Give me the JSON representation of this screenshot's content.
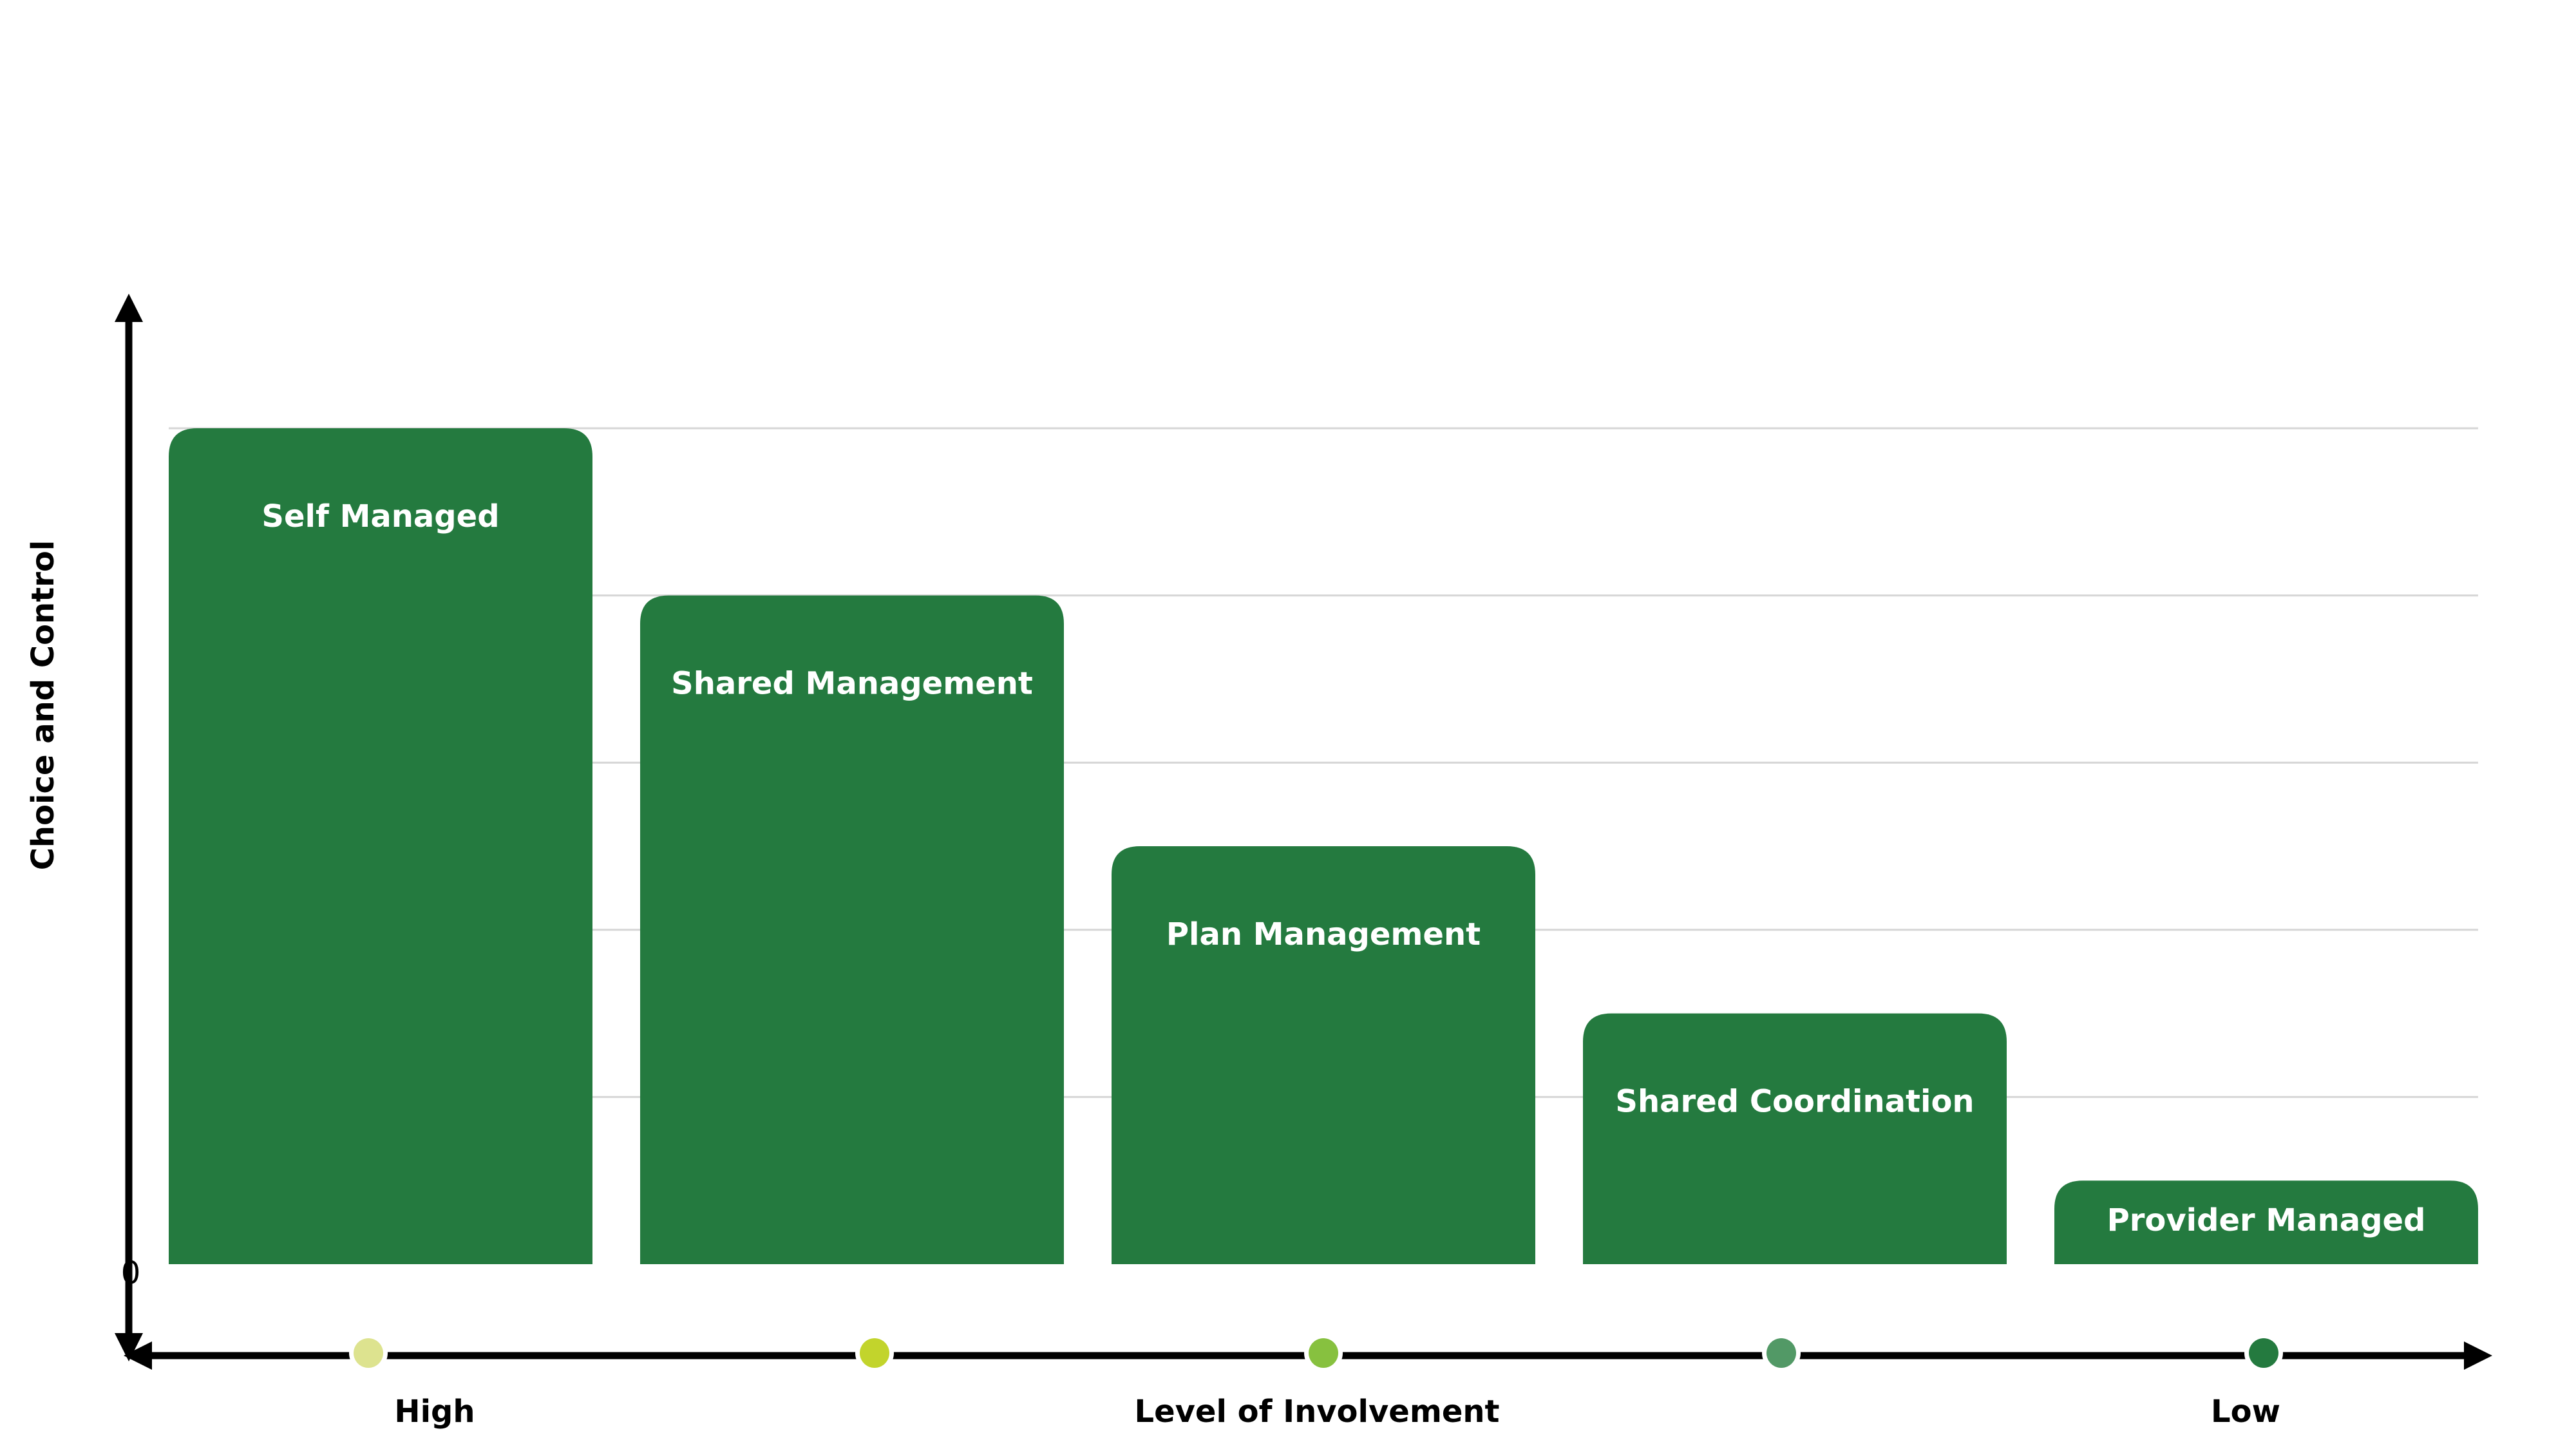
{
  "chart_data": {
    "type": "bar",
    "categories": [
      "Self Managed",
      "Shared Management",
      "Plan Management",
      "Shared Coordination",
      "Provider Managed"
    ],
    "values": [
      5,
      4,
      2.5,
      1.5,
      0.5
    ],
    "ylim": [
      0,
      5
    ],
    "ylabel": "Choice and Control",
    "y_tick_label": "0",
    "xlabel": "Level of Involvement",
    "x_left_label": "High",
    "x_right_label": "Low",
    "grid": true,
    "bar_color": "#247a3f",
    "scale_dots": [
      {
        "color": "#dde38f"
      },
      {
        "color": "#c2d42c"
      },
      {
        "color": "#87c13f"
      },
      {
        "color": "#529966"
      },
      {
        "color": "#247a3f"
      }
    ]
  }
}
